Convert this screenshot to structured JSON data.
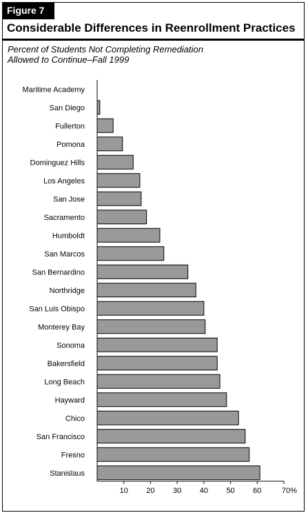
{
  "figure_label": "Figure 7",
  "title": "Considerable Differences in Reenrollment Practices",
  "subtitle_line1": "Percent of Students Not Completing Remediation",
  "subtitle_line2": "Allowed to Continue–Fall 1999",
  "colors": {
    "bar_fill": "#999999",
    "bar_stroke": "#000000",
    "label_bg": "#000000"
  },
  "chart_data": {
    "type": "bar",
    "orientation": "horizontal",
    "categories": [
      "Maritime Academy",
      "San Diego",
      "Fullerton",
      "Pomona",
      "Dominguez Hills",
      "Los Angeles",
      "San Jose",
      "Sacramento",
      "Humboldt",
      "San Marcos",
      "San Bernardino",
      "Northridge",
      "San Luis Obispo",
      "Monterey Bay",
      "Sonoma",
      "Bakersfield",
      "Long Beach",
      "Hayward",
      "Chico",
      "San Francisco",
      "Fresno",
      "Stanislaus"
    ],
    "values": [
      0,
      1,
      6,
      9.5,
      13.5,
      16,
      16.5,
      18.5,
      23.5,
      25,
      34,
      37,
      40,
      40.5,
      45,
      45,
      46,
      48.5,
      53,
      55.5,
      57,
      61
    ],
    "xlim": [
      0,
      70
    ],
    "ticks": [
      10,
      20,
      30,
      40,
      50,
      60,
      70
    ],
    "tick_labels": [
      "10",
      "20",
      "30",
      "40",
      "50",
      "60",
      "70%"
    ],
    "grid": false
  }
}
